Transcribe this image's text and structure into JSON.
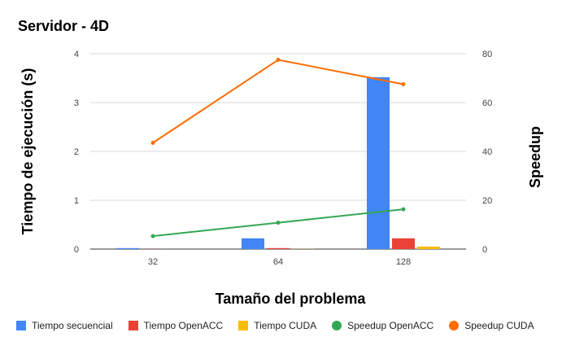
{
  "chart_data": {
    "type": "bar",
    "title": "Servidor - 4D",
    "xlabel": "Tamaño del problema",
    "ylabel": "Tiempo de ejecución (s)",
    "y2label": "Speedup",
    "categories": [
      "32",
      "64",
      "128"
    ],
    "ylim": [
      0,
      4
    ],
    "y2lim": [
      0,
      80
    ],
    "yticks": [
      "0",
      "1",
      "2",
      "3",
      "4"
    ],
    "y2ticks": [
      "0",
      "20",
      "40",
      "60",
      "80"
    ],
    "grid": true,
    "legend_position": "bottom",
    "series": [
      {
        "name": "Tiempo secuencial",
        "kind": "bar",
        "axis": "left",
        "color": "#4285F4",
        "values": [
          0.02,
          0.22,
          3.52
        ]
      },
      {
        "name": "Tiempo OpenACC",
        "kind": "bar",
        "axis": "left",
        "color": "#EA4335",
        "values": [
          0.002,
          0.02,
          0.22
        ]
      },
      {
        "name": "Tiempo CUDA",
        "kind": "bar",
        "axis": "left",
        "color": "#FBBC04",
        "values": [
          0.0,
          0.003,
          0.05
        ]
      },
      {
        "name": "Speedup OpenACC",
        "kind": "line",
        "axis": "right",
        "color": "#34A853",
        "values": [
          5.3,
          10.8,
          16.3
        ]
      },
      {
        "name": "Speedup CUDA",
        "kind": "line",
        "axis": "right",
        "color": "#FF6D01",
        "values": [
          43.5,
          77.5,
          67.5
        ]
      }
    ]
  }
}
